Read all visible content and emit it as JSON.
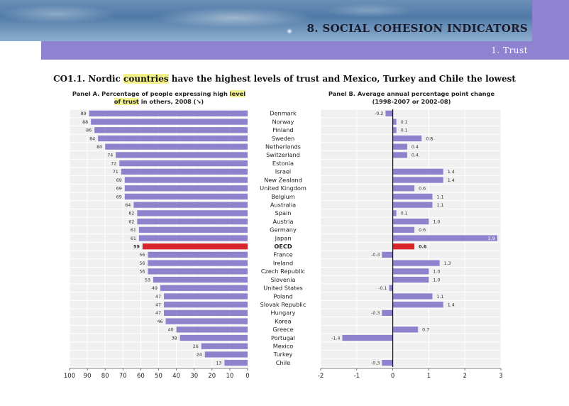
{
  "header": {
    "section_title": "8. SOCIAL COHESION INDICATORS",
    "subsection": "1. Trust"
  },
  "figure": {
    "title_prefix": "CO1.1. Nordic ",
    "title_highlight": "countries",
    "title_suffix": " have the highest levels of trust and Mexico, Turkey and Chile the lowest"
  },
  "colors": {
    "bar": "#8f82cc",
    "oecd": "#d8242a",
    "grid": "#e6e6e6",
    "banner": "#8f82d0"
  },
  "chart_data": [
    {
      "type": "bar",
      "orientation": "horizontal",
      "title_line1_a": "Panel A. Percentage of people expressing high ",
      "title_line1_hl": "level",
      "title_line2_hl": "of trust",
      "title_line2_b": " in others, 2008 (↘)",
      "axis_reversed": true,
      "xlim": [
        0,
        100
      ],
      "ticks": [
        "100",
        "90",
        "80",
        "70",
        "60",
        "50",
        "40",
        "30",
        "20",
        "10",
        "0"
      ],
      "categories": [
        "Denmark",
        "Norway",
        "Finland",
        "Sweden",
        "Netherlands",
        "Switzerland",
        "Estonia",
        "Israel",
        "New Zealand",
        "United Kingdom",
        "Belgium",
        "Australia",
        "Spain",
        "Austria",
        "Germany",
        "Japan",
        "OECD",
        "France",
        "Ireland",
        "Czech Republic",
        "Slovenia",
        "United States",
        "Poland",
        "Slovak Republic",
        "Hungary",
        "Korea",
        "Greece",
        "Portugal",
        "Mexico",
        "Turkey",
        "Chile"
      ],
      "values": [
        89,
        88,
        86,
        84,
        80,
        74,
        72,
        71,
        69,
        69,
        69,
        64,
        62,
        62,
        61,
        61,
        59,
        56,
        56,
        56,
        53,
        49,
        47,
        47,
        47,
        46,
        40,
        38,
        26,
        24,
        13
      ],
      "labels": [
        "89",
        "88",
        "86",
        "84",
        "80",
        "74",
        "72",
        "71",
        "69",
        "69",
        "69",
        "64",
        "62",
        "62",
        "61",
        "61",
        "59",
        "56",
        "56",
        "56",
        "53",
        "49",
        "47",
        "47",
        "47",
        "46",
        "40",
        "38",
        "26",
        "24",
        "13"
      ],
      "highlight": "OECD",
      "grid": true
    },
    {
      "type": "bar",
      "orientation": "horizontal",
      "title_line1": "Panel B. Average annual percentage point change",
      "title_line2": "(1998-2007 or 2002-08)",
      "xlim": [
        -2,
        3
      ],
      "ticks": [
        "-2",
        "-1",
        "0",
        "1",
        "2",
        "3"
      ],
      "categories": [
        "Denmark",
        "Norway",
        "Finland",
        "Sweden",
        "Netherlands",
        "Switzerland",
        "Estonia",
        "Israel",
        "New Zealand",
        "United Kingdom",
        "Belgium",
        "Australia",
        "Spain",
        "Austria",
        "Germany",
        "Japan",
        "OECD",
        "France",
        "Ireland",
        "Czech Republic",
        "Slovenia",
        "United States",
        "Poland",
        "Slovak Republic",
        "Hungary",
        "Korea",
        "Greece",
        "Portugal",
        "Mexico",
        "Turkey",
        "Chile"
      ],
      "values": [
        -0.2,
        0.1,
        0.1,
        0.8,
        0.4,
        0.4,
        null,
        1.4,
        1.4,
        0.6,
        1.1,
        1.1,
        0.1,
        1.0,
        0.6,
        2.9,
        0.6,
        -0.3,
        1.3,
        1.0,
        1.0,
        -0.1,
        1.1,
        1.4,
        -0.3,
        null,
        0.7,
        -1.4,
        null,
        null,
        -0.3
      ],
      "labels": [
        "-0.2",
        "0.1",
        "0.1",
        "0.8",
        "0.4",
        "0.4",
        "",
        "1.4",
        "1.4",
        "0.6",
        "1.1",
        "1.1",
        "0.1",
        "1.0",
        "0.6",
        "2.9",
        "0.6",
        "-0.3",
        "1.3",
        "1.0",
        "1.0",
        "-0.1",
        "1.1",
        "1.4",
        "-0.3",
        "",
        "0.7",
        "-1.4",
        "",
        "",
        "-0.3"
      ],
      "highlight": "OECD",
      "grid": true
    }
  ]
}
